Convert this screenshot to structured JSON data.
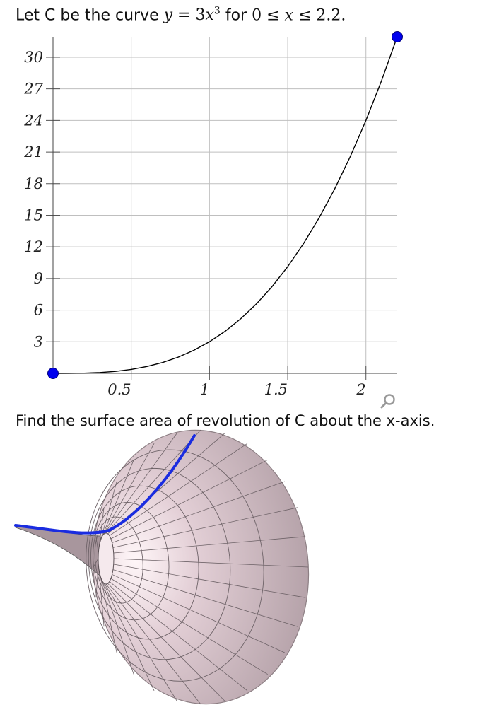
{
  "prompt": {
    "prefix": "Let C be the curve",
    "y_var": "y",
    "eq": "=",
    "coef": "3",
    "x_var": "x",
    "power": "3",
    "for_word": "for",
    "lower": "0",
    "le1": "≤",
    "x_var2": "x",
    "le2": "≤",
    "upper": "2.2."
  },
  "question": "Find the surface area of revolution of C about the x-axis.",
  "icons": {
    "zoom": "magnifier-icon"
  },
  "colors": {
    "curve": "#000000",
    "endpoint": "#0000ee",
    "grid": "#bfbfbf",
    "surface_fill": "#b9a6ad",
    "surface_edge": "#3a3a3a",
    "highlight": "#1a2ce0"
  },
  "chart_data": {
    "type": "line",
    "title": "",
    "xlabel": "",
    "ylabel": "",
    "xlim": [
      0,
      2.2
    ],
    "ylim": [
      0,
      31.944
    ],
    "x_ticks": [
      0.5,
      1,
      1.5,
      2
    ],
    "x_tick_labels": [
      "0.5",
      "1",
      "1.5",
      "2"
    ],
    "y_ticks": [
      3,
      6,
      9,
      12,
      15,
      18,
      21,
      24,
      27,
      30
    ],
    "y_tick_labels": [
      "3",
      "6",
      "9",
      "12",
      "15",
      "18",
      "21",
      "24",
      "27",
      "30"
    ],
    "grid": true,
    "series": [
      {
        "x": [
          0,
          0.1,
          0.2,
          0.3,
          0.4,
          0.5,
          0.6,
          0.7,
          0.8,
          0.9,
          1.0,
          1.1,
          1.2,
          1.3,
          1.4,
          1.5,
          1.6,
          1.7,
          1.8,
          1.9,
          2.0,
          2.1,
          2.2
        ],
        "y": [
          0,
          0.003,
          0.024,
          0.081,
          0.192,
          0.375,
          0.648,
          1.029,
          1.536,
          2.187,
          3.0,
          3.993,
          5.184,
          6.591,
          8.232,
          10.125,
          12.288,
          14.739,
          17.496,
          20.577,
          24.0,
          27.783,
          31.944
        ]
      }
    ],
    "endpoints": [
      [
        0,
        0
      ],
      [
        2.2,
        31.944
      ]
    ]
  }
}
